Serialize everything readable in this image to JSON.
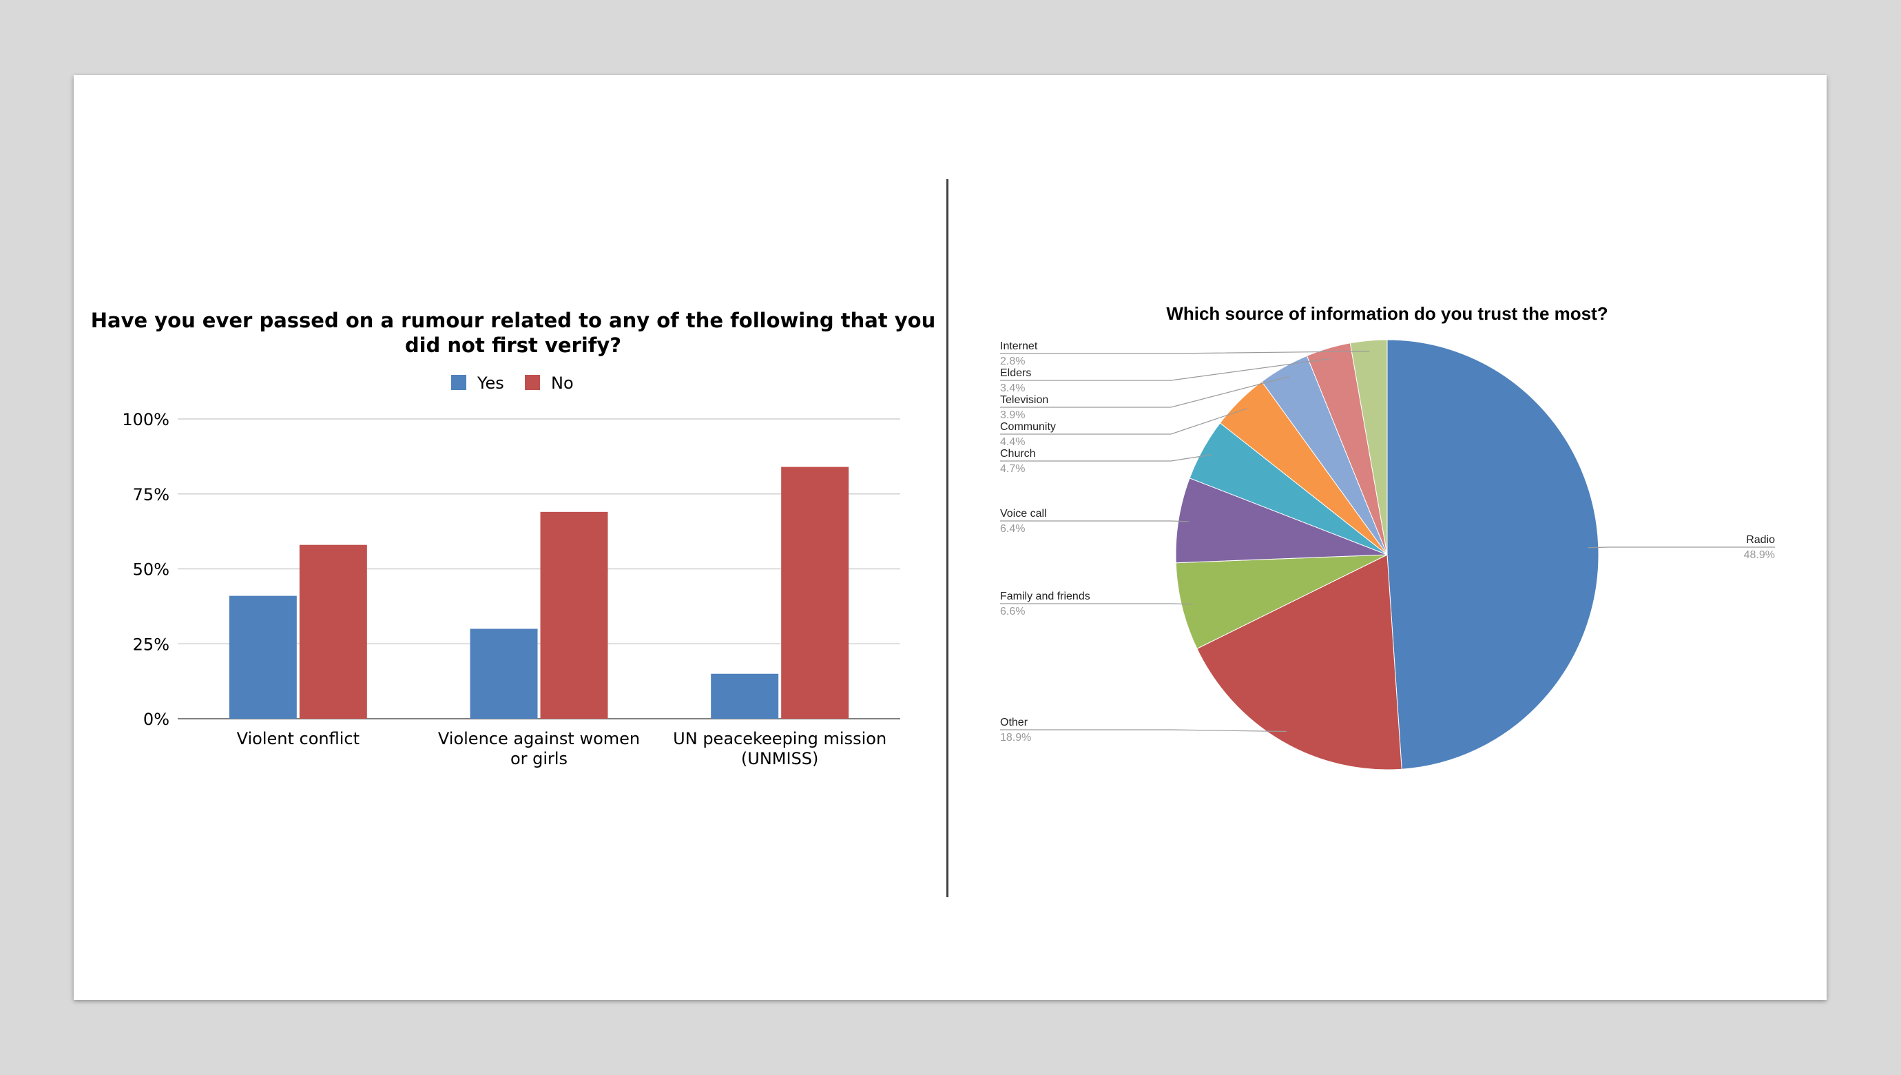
{
  "chart_data": [
    {
      "type": "bar",
      "title": "Have you ever passed on a rumour related to any of the following that you did not first verify?",
      "title_lines": [
        "Have you ever passed on a rumour related to any of the following that you",
        "did not first verify?"
      ],
      "categories": [
        "Violent conflict",
        "Violence against women or girls",
        "UN peacekeeping mission (UNMISS)"
      ],
      "category_lines": [
        [
          "Violent conflict"
        ],
        [
          "Violence against women",
          "or girls"
        ],
        [
          "UN peacekeeping mission",
          "(UNMISS)"
        ]
      ],
      "series": [
        {
          "name": "Yes",
          "color": "#4f81bd",
          "values": [
            41,
            30,
            15
          ]
        },
        {
          "name": "No",
          "color": "#c0504d",
          "values": [
            58,
            69,
            84
          ]
        }
      ],
      "ylim": [
        0,
        100
      ],
      "yticks": [
        "0%",
        "25%",
        "50%",
        "75%",
        "100%"
      ],
      "legend": "top",
      "grid": true
    },
    {
      "type": "pie",
      "title": "Which source of information do you trust the most?",
      "legend": "labels",
      "slices": [
        {
          "label": "Radio",
          "value": 48.9,
          "pct": "48.9%",
          "color": "#4f81bd"
        },
        {
          "label": "Other",
          "value": 18.9,
          "pct": "18.9%",
          "color": "#c0504d"
        },
        {
          "label": "Family and friends",
          "value": 6.6,
          "pct": "6.6%",
          "color": "#9bbb59"
        },
        {
          "label": "Voice call",
          "value": 6.4,
          "pct": "6.4%",
          "color": "#8064a2"
        },
        {
          "label": "Church",
          "value": 4.7,
          "pct": "4.7%",
          "color": "#4bacc6"
        },
        {
          "label": "Community",
          "value": 4.4,
          "pct": "4.4%",
          "color": "#f79646"
        },
        {
          "label": "Television",
          "value": 3.9,
          "pct": "3.9%",
          "color": "#8aa8d6"
        },
        {
          "label": "Elders",
          "value": 3.4,
          "pct": "3.4%",
          "color": "#d9827f"
        },
        {
          "label": "Internet",
          "value": 2.8,
          "pct": "2.8%",
          "color": "#b9cc8c"
        }
      ]
    }
  ]
}
